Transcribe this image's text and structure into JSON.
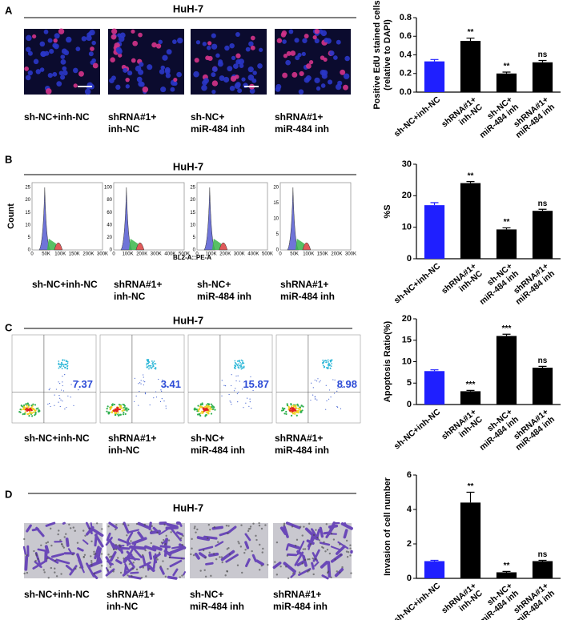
{
  "groups": [
    [
      "sh-NC+inh-NC"
    ],
    [
      "shRNA#1+",
      "inh-NC"
    ],
    [
      "sh-NC+",
      "miR-484 inh"
    ],
    [
      "shRNA#1+",
      "miR-484 inh"
    ]
  ],
  "panels": [
    {
      "label": "A",
      "title": "HuH-7",
      "chart": {
        "type": "bar",
        "ylabel": [
          "Positive EdU stained cells",
          "(relative to DAPI)"
        ],
        "values": [
          0.33,
          0.55,
          0.2,
          0.32
        ],
        "errors": [
          0.02,
          0.03,
          0.015,
          0.02
        ],
        "significance": [
          null,
          "**",
          "**",
          "ns"
        ],
        "colors": [
          "#1f1fff",
          "#000000",
          "#000000",
          "#000000"
        ],
        "ylim": [
          0,
          0.8
        ],
        "yticks": [
          {
            "value": 0,
            "label": "0.0"
          },
          0.2,
          0.4,
          0.6,
          0.8
        ]
      }
    },
    {
      "label": "B",
      "title": "HuH-7",
      "histogram": {
        "ylabel": "Count",
        "xlabel": "BL2-A::PE-A",
        "plots": [
          {
            "yticks": [
              "0",
              "5",
              "10",
              "15",
              "20",
              "25"
            ],
            "xticks": [
              "0",
              "50K",
              "100K",
              "150K",
              "200K",
              "300K"
            ]
          },
          {
            "yticks": [
              "0",
              "20",
              "40",
              "60",
              "80",
              "100"
            ],
            "xticks": [
              "0",
              "100K",
              "200K",
              "300K",
              "400K",
              "500K"
            ]
          },
          {
            "yticks": [
              "0",
              "5",
              "10",
              "15",
              "20",
              "25"
            ],
            "xticks": [
              "0",
              "100K",
              "200K",
              "300K",
              "400K",
              "500K"
            ]
          },
          {
            "yticks": [
              "0",
              "5",
              "10",
              "15",
              "20"
            ],
            "xticks": [
              "0",
              "50K",
              "100K",
              "150K",
              "200K",
              "300K"
            ]
          }
        ]
      },
      "chart": {
        "type": "bar",
        "ylabel": [
          "%S"
        ],
        "values": [
          17,
          24,
          9.3,
          15.2
        ],
        "errors": [
          0.8,
          0.5,
          0.5,
          0.5
        ],
        "significance": [
          null,
          "**",
          "**",
          "ns"
        ],
        "colors": [
          "#1f1fff",
          "#000000",
          "#000000",
          "#000000"
        ],
        "ylim": [
          0,
          30
        ],
        "yticks": [
          0,
          10,
          20,
          30
        ]
      }
    },
    {
      "label": "C",
      "title": "HuH-7",
      "quadrant_values": [
        7.37,
        3.41,
        15.87,
        8.98
      ],
      "chart": {
        "type": "bar",
        "ylabel": [
          "Apoptosis Ratio(%)"
        ],
        "values": [
          7.8,
          3.1,
          16,
          8.6
        ],
        "errors": [
          0.3,
          0.2,
          0.4,
          0.3
        ],
        "significance": [
          null,
          "***",
          "***",
          "ns"
        ],
        "colors": [
          "#1f1fff",
          "#000000",
          "#000000",
          "#000000"
        ],
        "ylim": [
          0,
          20
        ],
        "yticks": [
          0,
          5,
          10,
          15,
          20
        ]
      }
    },
    {
      "label": "D",
      "title": "HuH-7",
      "chart": {
        "type": "bar",
        "ylabel": [
          "Invasion of cell number"
        ],
        "values": [
          1.0,
          4.4,
          0.35,
          1.0
        ],
        "errors": [
          0.05,
          0.6,
          0.05,
          0.05
        ],
        "significance": [
          null,
          "**",
          "**",
          "ns"
        ],
        "colors": [
          "#1f1fff",
          "#000000",
          "#000000",
          "#000000"
        ],
        "ylim": [
          0,
          6
        ],
        "yticks": [
          0,
          2,
          4,
          6
        ]
      }
    }
  ]
}
